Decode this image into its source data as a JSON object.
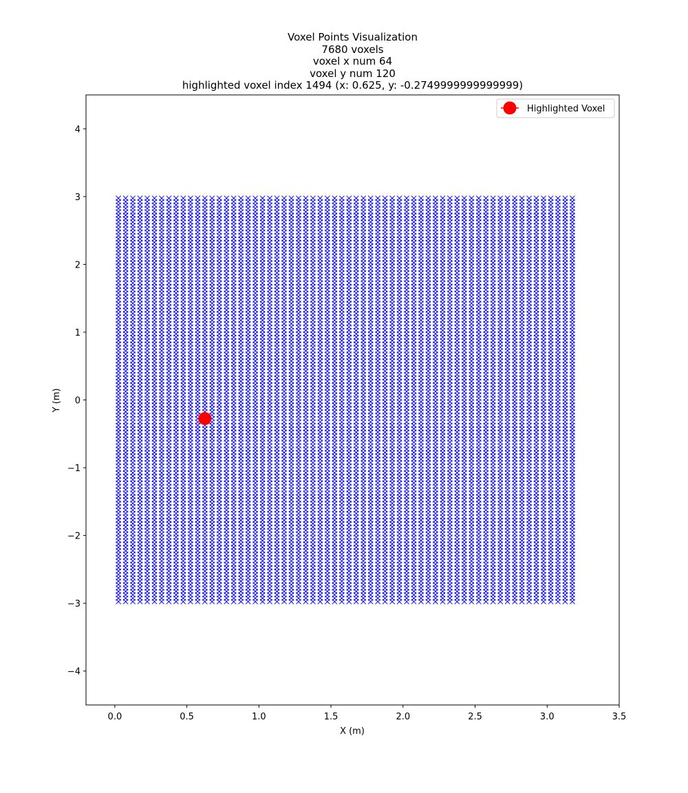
{
  "chart_data": {
    "type": "scatter",
    "title_lines": [
      "Voxel Points Visualization",
      "7680 voxels",
      "voxel x num 64",
      "voxel y num 120",
      "highlighted voxel index 1494 (x: 0.625, y: -0.2749999999999999)"
    ],
    "xlabel": "X (m)",
    "ylabel": "Y (m)",
    "xlim": [
      -0.2,
      3.5
    ],
    "ylim": [
      -4.5,
      4.5
    ],
    "xticks": [
      0.0,
      0.5,
      1.0,
      1.5,
      2.0,
      2.5,
      3.0,
      3.5
    ],
    "xtick_labels": [
      "0.0",
      "0.5",
      "1.0",
      "1.5",
      "2.0",
      "2.5",
      "3.0",
      "3.5"
    ],
    "yticks": [
      4,
      3,
      2,
      1,
      0,
      -1,
      -2,
      -3,
      -4
    ],
    "ytick_labels": [
      "4",
      "3",
      "2",
      "1",
      "0",
      "−1",
      "−2",
      "−3",
      "−4"
    ],
    "grid": false,
    "legend_position": "upper right",
    "voxel_series": {
      "marker": "x",
      "color": "#0000ff",
      "x_start": 0.025,
      "x_step": 0.05,
      "x_count": 64,
      "y_start": -2.975,
      "y_step": 0.05,
      "y_count": 120
    },
    "highlight": {
      "label": "Highlighted Voxel",
      "x": 0.625,
      "y": -0.275,
      "color": "#ff0000",
      "marker": "o"
    }
  }
}
